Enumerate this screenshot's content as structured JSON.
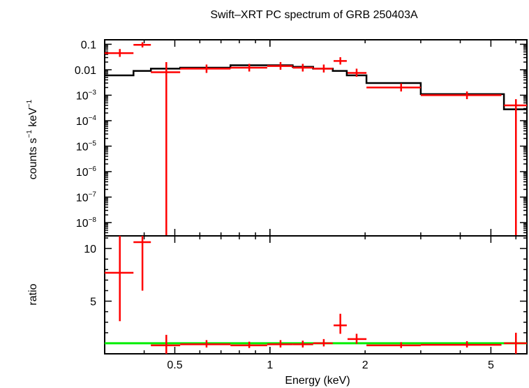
{
  "title": "Swift–XRT PC spectrum of GRB 250403A",
  "colors": {
    "data": "#ff0000",
    "model": "#000000",
    "unity": "#00ee00",
    "axes": "#000000"
  },
  "chart_data": [
    {
      "type": "scatter",
      "panel": "spectrum",
      "ylabel_base": "counts s",
      "ylabel_exp1": "−1",
      "ylabel_mid": " keV",
      "ylabel_exp2": "−1",
      "xscale": "log",
      "yscale": "log",
      "xlim": [
        0.3,
        6.5
      ],
      "ylim": [
        3e-09,
        0.15
      ],
      "ytick_labels": [
        {
          "value": 0.1,
          "base": "0.1",
          "exp": ""
        },
        {
          "value": 0.01,
          "base": "0.01",
          "exp": ""
        },
        {
          "value": 0.001,
          "base": "10",
          "exp": "−3"
        },
        {
          "value": 0.0001,
          "base": "10",
          "exp": "−4"
        },
        {
          "value": 1e-05,
          "base": "10",
          "exp": "−5"
        },
        {
          "value": 1e-06,
          "base": "10",
          "exp": "−6"
        },
        {
          "value": 1e-07,
          "base": "10",
          "exp": "−7"
        },
        {
          "value": 1e-08,
          "base": "10",
          "exp": "−8"
        }
      ],
      "series": [
        {
          "kind": "data",
          "points": [
            {
              "x": 0.335,
              "xlo": 0.3,
              "xhi": 0.37,
              "y": 0.045,
              "ylo": 0.032,
              "yhi": 0.065
            },
            {
              "x": 0.395,
              "xlo": 0.37,
              "xhi": 0.42,
              "y": 0.095,
              "ylo": 0.075,
              "yhi": 0.12
            },
            {
              "x": 0.47,
              "xlo": 0.42,
              "xhi": 0.52,
              "y": 0.008,
              "ylo": 3e-09,
              "yhi": 0.02
            },
            {
              "x": 0.63,
              "xlo": 0.52,
              "xhi": 0.75,
              "y": 0.011,
              "ylo": 0.0075,
              "yhi": 0.016
            },
            {
              "x": 0.86,
              "xlo": 0.75,
              "xhi": 0.98,
              "y": 0.012,
              "ylo": 0.0085,
              "yhi": 0.017
            },
            {
              "x": 1.08,
              "xlo": 0.98,
              "xhi": 1.18,
              "y": 0.014,
              "ylo": 0.01,
              "yhi": 0.02
            },
            {
              "x": 1.27,
              "xlo": 1.18,
              "xhi": 1.37,
              "y": 0.012,
              "ylo": 0.0085,
              "yhi": 0.017
            },
            {
              "x": 1.48,
              "xlo": 1.37,
              "xhi": 1.58,
              "y": 0.011,
              "ylo": 0.0078,
              "yhi": 0.016
            },
            {
              "x": 1.67,
              "xlo": 1.59,
              "xhi": 1.75,
              "y": 0.022,
              "ylo": 0.016,
              "yhi": 0.031
            },
            {
              "x": 1.88,
              "xlo": 1.76,
              "xhi": 2.02,
              "y": 0.0075,
              "ylo": 0.0053,
              "yhi": 0.011
            },
            {
              "x": 2.6,
              "xlo": 2.02,
              "xhi": 3.0,
              "y": 0.002,
              "ylo": 0.0014,
              "yhi": 0.0029
            },
            {
              "x": 4.2,
              "xlo": 3.0,
              "xhi": 5.4,
              "y": 0.001,
              "ylo": 0.0007,
              "yhi": 0.0014
            },
            {
              "x": 6.0,
              "xlo": 5.5,
              "xhi": 6.5,
              "y": 0.0004,
              "ylo": 3e-09,
              "yhi": 0.0007
            }
          ]
        },
        {
          "kind": "model",
          "steps": [
            {
              "xlo": 0.3,
              "xhi": 0.37,
              "y": 0.006
            },
            {
              "xlo": 0.37,
              "xhi": 0.42,
              "y": 0.009
            },
            {
              "xlo": 0.42,
              "xhi": 0.52,
              "y": 0.011
            },
            {
              "xlo": 0.52,
              "xhi": 0.75,
              "y": 0.012
            },
            {
              "xlo": 0.75,
              "xhi": 0.98,
              "y": 0.015
            },
            {
              "xlo": 0.98,
              "xhi": 1.18,
              "y": 0.015
            },
            {
              "xlo": 1.18,
              "xhi": 1.37,
              "y": 0.013
            },
            {
              "xlo": 1.37,
              "xhi": 1.58,
              "y": 0.011
            },
            {
              "xlo": 1.58,
              "xhi": 1.75,
              "y": 0.009
            },
            {
              "xlo": 1.75,
              "xhi": 2.02,
              "y": 0.006
            },
            {
              "xlo": 2.02,
              "xhi": 3.0,
              "y": 0.003
            },
            {
              "xlo": 3.0,
              "xhi": 5.5,
              "y": 0.0011
            },
            {
              "xlo": 5.5,
              "xhi": 6.5,
              "y": 0.00028
            }
          ]
        }
      ]
    },
    {
      "type": "scatter",
      "panel": "ratio",
      "xlabel": "Energy (keV)",
      "ylabel": "ratio",
      "xscale": "log",
      "yscale": "linear",
      "xlim": [
        0.3,
        6.5
      ],
      "ylim": [
        0,
        11.2
      ],
      "xtick_labels": [
        {
          "value": 0.5,
          "label": "0.5"
        },
        {
          "value": 1,
          "label": "1"
        },
        {
          "value": 2,
          "label": "2"
        },
        {
          "value": 5,
          "label": "5"
        }
      ],
      "ytick_labels": [
        {
          "value": 10,
          "label": "10"
        },
        {
          "value": 5,
          "label": "5"
        }
      ],
      "unity_line": 1,
      "series": [
        {
          "kind": "data",
          "points": [
            {
              "x": 0.335,
              "xlo": 0.3,
              "xhi": 0.37,
              "y": 7.7,
              "ylo": 3.1,
              "yhi": 11.2
            },
            {
              "x": 0.395,
              "xlo": 0.37,
              "xhi": 0.42,
              "y": 10.6,
              "ylo": 6.0,
              "yhi": 11.2
            },
            {
              "x": 0.47,
              "xlo": 0.42,
              "xhi": 0.52,
              "y": 0.8,
              "ylo": 0.0,
              "yhi": 1.8
            },
            {
              "x": 0.63,
              "xlo": 0.52,
              "xhi": 0.75,
              "y": 0.9,
              "ylo": 0.6,
              "yhi": 1.3
            },
            {
              "x": 0.86,
              "xlo": 0.75,
              "xhi": 0.98,
              "y": 0.8,
              "ylo": 0.55,
              "yhi": 1.15
            },
            {
              "x": 1.08,
              "xlo": 0.98,
              "xhi": 1.18,
              "y": 0.9,
              "ylo": 0.6,
              "yhi": 1.3
            },
            {
              "x": 1.27,
              "xlo": 1.18,
              "xhi": 1.37,
              "y": 0.9,
              "ylo": 0.6,
              "yhi": 1.25
            },
            {
              "x": 1.48,
              "xlo": 1.37,
              "xhi": 1.58,
              "y": 1.0,
              "ylo": 0.7,
              "yhi": 1.4
            },
            {
              "x": 1.67,
              "xlo": 1.59,
              "xhi": 1.75,
              "y": 2.7,
              "ylo": 1.9,
              "yhi": 3.8
            },
            {
              "x": 1.88,
              "xlo": 1.76,
              "xhi": 2.02,
              "y": 1.4,
              "ylo": 0.95,
              "yhi": 1.9
            },
            {
              "x": 2.6,
              "xlo": 2.02,
              "xhi": 3.0,
              "y": 0.8,
              "ylo": 0.55,
              "yhi": 1.1
            },
            {
              "x": 4.2,
              "xlo": 3.0,
              "xhi": 5.4,
              "y": 0.85,
              "ylo": 0.6,
              "yhi": 1.2
            },
            {
              "x": 6.0,
              "xlo": 5.5,
              "xhi": 6.5,
              "y": 1.0,
              "ylo": 0.0,
              "yhi": 2.0
            }
          ]
        }
      ]
    }
  ]
}
